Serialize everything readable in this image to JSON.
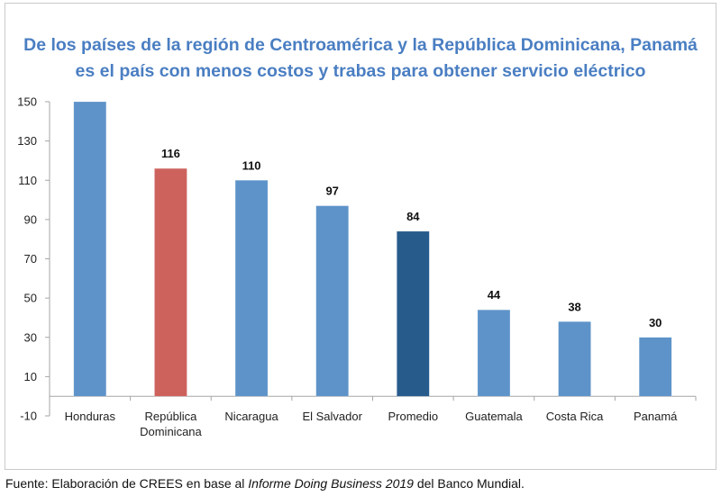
{
  "chart_data": {
    "type": "bar",
    "title_lines": [
      "De los países de la región de Centroamérica y la República Dominicana, Panamá",
      "es el país con menos costos y trabas para obtener servicio eléctrico"
    ],
    "categories": [
      [
        "Honduras"
      ],
      [
        "República",
        "Dominicana"
      ],
      [
        "Nicaragua"
      ],
      [
        "El Salvador"
      ],
      [
        "Promedio"
      ],
      [
        "Guatemala"
      ],
      [
        "Costa Rica"
      ],
      [
        "Panamá"
      ]
    ],
    "values": [
      150,
      116,
      110,
      97,
      84,
      44,
      38,
      30
    ],
    "data_labels": [
      "",
      "116",
      "110",
      "97",
      "84",
      "44",
      "38",
      "30"
    ],
    "bar_colors": [
      "#5e93c9",
      "#cd625d",
      "#5e93c9",
      "#5e93c9",
      "#265b8c",
      "#5e93c9",
      "#5e93c9",
      "#5e93c9"
    ],
    "xlabel": "",
    "ylabel": "",
    "ylim": [
      -10,
      150
    ],
    "yticks": [
      150,
      130,
      110,
      90,
      70,
      50,
      30,
      10,
      -10
    ],
    "grid": false,
    "legend": "none"
  },
  "colors": {
    "title": "#4a7ec2",
    "axis": "#a6a6a6"
  },
  "footer": {
    "prefix": "Fuente: Elaboración de CREES en base al ",
    "italic": "Informe Doing Business 2019",
    "suffix": " del Banco Mundial."
  }
}
